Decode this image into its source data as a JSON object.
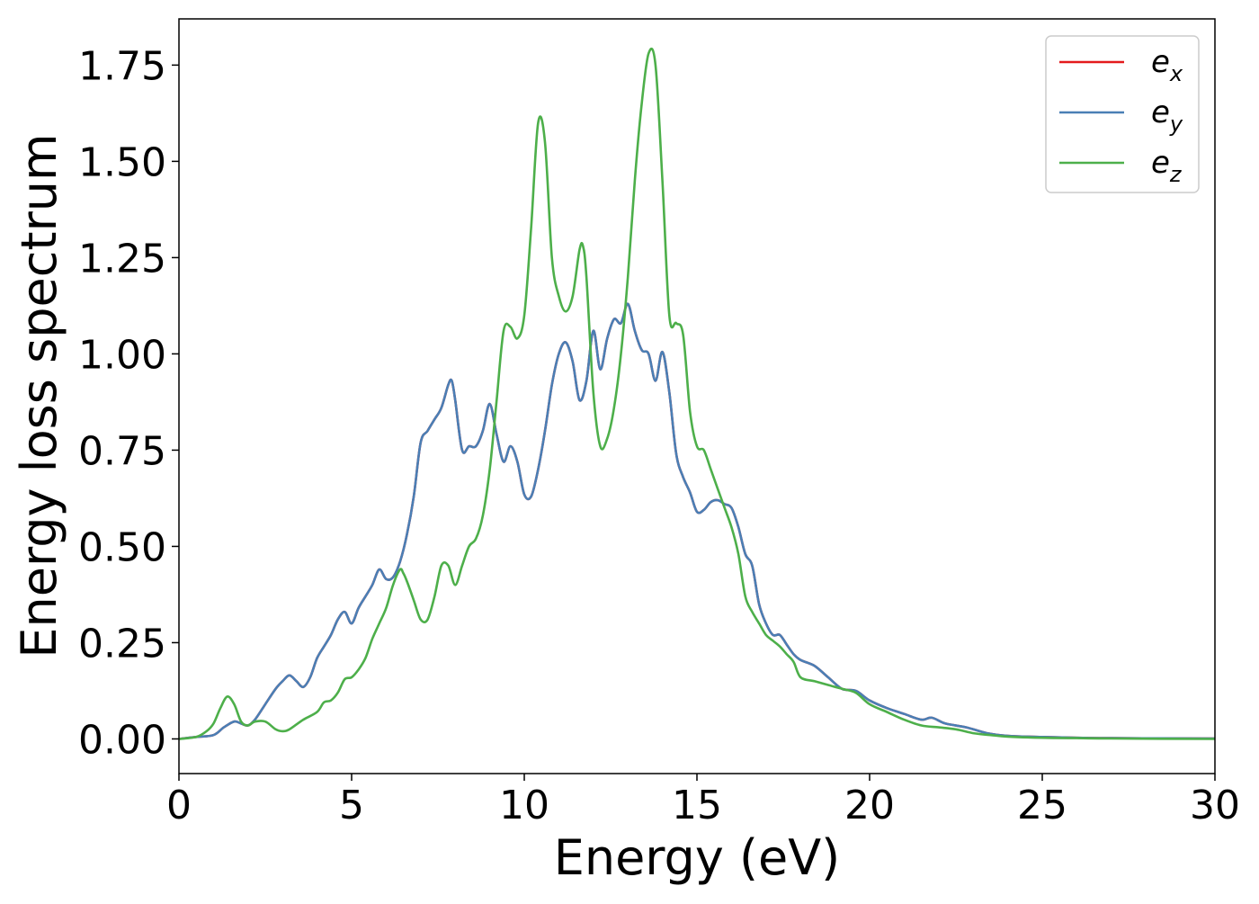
{
  "chart_data": {
    "type": "line",
    "xlabel": "Energy (eV)",
    "ylabel": "Energy loss spectrum",
    "xlim": [
      0,
      30
    ],
    "ylim": [
      -0.09,
      1.87
    ],
    "xticks": [
      0,
      5,
      10,
      15,
      20,
      25,
      30
    ],
    "xtick_labels": [
      "0",
      "5",
      "10",
      "15",
      "20",
      "25",
      "30"
    ],
    "yticks": [
      0.0,
      0.25,
      0.5,
      0.75,
      1.0,
      1.25,
      1.5,
      1.75
    ],
    "ytick_labels": [
      "0.00",
      "0.25",
      "0.50",
      "0.75",
      "1.00",
      "1.25",
      "1.50",
      "1.75"
    ],
    "grid": false,
    "legend": "top-right",
    "series": [
      {
        "name": "e_x",
        "label_base": "e",
        "label_sub": "x",
        "color": "#e41a1c",
        "x": [
          0,
          0.5,
          1.0,
          1.3,
          1.6,
          1.8,
          2.0,
          2.2,
          2.5,
          2.8,
          3.0,
          3.2,
          3.4,
          3.6,
          3.8,
          4.0,
          4.2,
          4.4,
          4.6,
          4.8,
          5.0,
          5.2,
          5.4,
          5.6,
          5.8,
          6.0,
          6.2,
          6.4,
          6.6,
          6.8,
          7.0,
          7.2,
          7.4,
          7.6,
          7.8,
          7.9,
          8.0,
          8.2,
          8.4,
          8.6,
          8.8,
          9.0,
          9.2,
          9.4,
          9.6,
          9.8,
          10.0,
          10.2,
          10.4,
          10.6,
          10.8,
          11.0,
          11.2,
          11.4,
          11.6,
          11.8,
          12.0,
          12.2,
          12.4,
          12.6,
          12.8,
          13.0,
          13.2,
          13.4,
          13.6,
          13.8,
          14.0,
          14.2,
          14.4,
          14.6,
          14.8,
          15.0,
          15.2,
          15.4,
          15.6,
          15.8,
          16.0,
          16.2,
          16.4,
          16.6,
          16.8,
          17.0,
          17.2,
          17.4,
          17.6,
          17.8,
          18.0,
          18.4,
          18.8,
          19.2,
          19.6,
          20.0,
          20.5,
          21.0,
          21.5,
          21.8,
          22.2,
          22.8,
          23.4,
          24.0,
          25.0,
          26.0,
          27.0,
          30.0
        ],
        "y": [
          0.0,
          0.005,
          0.01,
          0.03,
          0.045,
          0.04,
          0.035,
          0.05,
          0.09,
          0.13,
          0.15,
          0.165,
          0.15,
          0.135,
          0.16,
          0.21,
          0.24,
          0.27,
          0.31,
          0.33,
          0.3,
          0.34,
          0.37,
          0.4,
          0.44,
          0.415,
          0.42,
          0.46,
          0.53,
          0.63,
          0.77,
          0.8,
          0.83,
          0.86,
          0.92,
          0.93,
          0.88,
          0.75,
          0.76,
          0.76,
          0.8,
          0.87,
          0.79,
          0.72,
          0.76,
          0.72,
          0.635,
          0.63,
          0.7,
          0.8,
          0.92,
          1.0,
          1.03,
          0.98,
          0.88,
          0.93,
          1.06,
          0.96,
          1.04,
          1.09,
          1.08,
          1.13,
          1.06,
          1.01,
          1.0,
          0.93,
          1.005,
          0.9,
          0.74,
          0.68,
          0.64,
          0.59,
          0.595,
          0.615,
          0.62,
          0.61,
          0.6,
          0.55,
          0.48,
          0.45,
          0.35,
          0.3,
          0.27,
          0.27,
          0.245,
          0.22,
          0.205,
          0.19,
          0.16,
          0.13,
          0.125,
          0.1,
          0.08,
          0.065,
          0.05,
          0.055,
          0.04,
          0.03,
          0.015,
          0.008,
          0.005,
          0.003,
          0.002,
          0.001
        ]
      },
      {
        "name": "e_y",
        "label_base": "e",
        "label_sub": "y",
        "color": "#4a7fb5",
        "x": [
          0,
          0.5,
          1.0,
          1.3,
          1.6,
          1.8,
          2.0,
          2.2,
          2.5,
          2.8,
          3.0,
          3.2,
          3.4,
          3.6,
          3.8,
          4.0,
          4.2,
          4.4,
          4.6,
          4.8,
          5.0,
          5.2,
          5.4,
          5.6,
          5.8,
          6.0,
          6.2,
          6.4,
          6.6,
          6.8,
          7.0,
          7.2,
          7.4,
          7.6,
          7.8,
          7.9,
          8.0,
          8.2,
          8.4,
          8.6,
          8.8,
          9.0,
          9.2,
          9.4,
          9.6,
          9.8,
          10.0,
          10.2,
          10.4,
          10.6,
          10.8,
          11.0,
          11.2,
          11.4,
          11.6,
          11.8,
          12.0,
          12.2,
          12.4,
          12.6,
          12.8,
          13.0,
          13.2,
          13.4,
          13.6,
          13.8,
          14.0,
          14.2,
          14.4,
          14.6,
          14.8,
          15.0,
          15.2,
          15.4,
          15.6,
          15.8,
          16.0,
          16.2,
          16.4,
          16.6,
          16.8,
          17.0,
          17.2,
          17.4,
          17.6,
          17.8,
          18.0,
          18.4,
          18.8,
          19.2,
          19.6,
          20.0,
          20.5,
          21.0,
          21.5,
          21.8,
          22.2,
          22.8,
          23.4,
          24.0,
          25.0,
          26.0,
          27.0,
          30.0
        ],
        "y": [
          0.0,
          0.005,
          0.01,
          0.03,
          0.045,
          0.04,
          0.035,
          0.05,
          0.09,
          0.13,
          0.15,
          0.165,
          0.15,
          0.135,
          0.16,
          0.21,
          0.24,
          0.27,
          0.31,
          0.33,
          0.3,
          0.34,
          0.37,
          0.4,
          0.44,
          0.415,
          0.42,
          0.46,
          0.53,
          0.63,
          0.77,
          0.8,
          0.83,
          0.86,
          0.92,
          0.93,
          0.88,
          0.75,
          0.76,
          0.76,
          0.8,
          0.87,
          0.79,
          0.72,
          0.76,
          0.72,
          0.635,
          0.63,
          0.7,
          0.8,
          0.92,
          1.0,
          1.03,
          0.98,
          0.88,
          0.93,
          1.06,
          0.96,
          1.04,
          1.09,
          1.08,
          1.13,
          1.06,
          1.01,
          1.0,
          0.93,
          1.005,
          0.9,
          0.74,
          0.68,
          0.64,
          0.59,
          0.595,
          0.615,
          0.62,
          0.61,
          0.6,
          0.55,
          0.48,
          0.45,
          0.35,
          0.3,
          0.27,
          0.27,
          0.245,
          0.22,
          0.205,
          0.19,
          0.16,
          0.13,
          0.125,
          0.1,
          0.08,
          0.065,
          0.05,
          0.055,
          0.04,
          0.03,
          0.015,
          0.008,
          0.005,
          0.003,
          0.002,
          0.001
        ]
      },
      {
        "name": "e_z",
        "label_base": "e",
        "label_sub": "z",
        "color": "#4daf4a",
        "x": [
          0,
          0.5,
          0.8,
          1.0,
          1.2,
          1.4,
          1.6,
          1.8,
          2.0,
          2.2,
          2.5,
          2.8,
          3.0,
          3.2,
          3.6,
          4.0,
          4.2,
          4.4,
          4.6,
          4.8,
          5.0,
          5.2,
          5.4,
          5.6,
          5.8,
          6.0,
          6.2,
          6.4,
          6.5,
          6.6,
          6.8,
          7.0,
          7.2,
          7.4,
          7.6,
          7.8,
          8.0,
          8.2,
          8.4,
          8.6,
          8.8,
          9.0,
          9.2,
          9.4,
          9.6,
          9.8,
          10.0,
          10.2,
          10.4,
          10.6,
          10.8,
          11.0,
          11.2,
          11.4,
          11.6,
          11.7,
          11.8,
          12.0,
          12.2,
          12.4,
          12.6,
          12.8,
          13.0,
          13.2,
          13.4,
          13.6,
          13.8,
          14.0,
          14.2,
          14.4,
          14.6,
          14.8,
          15.0,
          15.2,
          15.4,
          15.6,
          15.8,
          16.0,
          16.2,
          16.4,
          16.6,
          16.8,
          17.0,
          17.2,
          17.4,
          17.6,
          17.8,
          18.0,
          18.4,
          18.8,
          19.2,
          19.6,
          20.0,
          20.5,
          21.0,
          21.5,
          22.0,
          22.5,
          23.0,
          23.5,
          24.0,
          25.0,
          26.0,
          27.0,
          30.0
        ],
        "y": [
          0.0,
          0.005,
          0.02,
          0.04,
          0.08,
          0.11,
          0.09,
          0.045,
          0.035,
          0.045,
          0.045,
          0.025,
          0.02,
          0.025,
          0.05,
          0.07,
          0.095,
          0.1,
          0.12,
          0.155,
          0.16,
          0.18,
          0.21,
          0.26,
          0.3,
          0.34,
          0.4,
          0.44,
          0.43,
          0.41,
          0.36,
          0.31,
          0.31,
          0.37,
          0.45,
          0.45,
          0.4,
          0.45,
          0.5,
          0.52,
          0.58,
          0.7,
          0.88,
          1.06,
          1.07,
          1.04,
          1.1,
          1.33,
          1.6,
          1.55,
          1.25,
          1.15,
          1.11,
          1.15,
          1.27,
          1.28,
          1.2,
          0.9,
          0.76,
          0.78,
          0.86,
          1.0,
          1.2,
          1.45,
          1.65,
          1.78,
          1.75,
          1.45,
          1.1,
          1.08,
          1.05,
          0.85,
          0.76,
          0.75,
          0.7,
          0.65,
          0.6,
          0.55,
          0.48,
          0.37,
          0.33,
          0.3,
          0.27,
          0.255,
          0.24,
          0.22,
          0.2,
          0.16,
          0.15,
          0.14,
          0.13,
          0.12,
          0.09,
          0.07,
          0.05,
          0.035,
          0.03,
          0.025,
          0.015,
          0.01,
          0.006,
          0.003,
          0.002,
          0.001,
          0.0
        ]
      }
    ]
  }
}
